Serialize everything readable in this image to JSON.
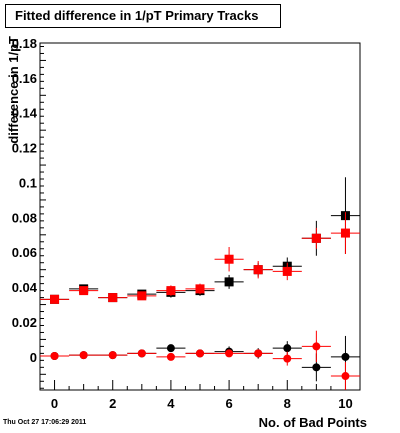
{
  "title": "Fitted difference in 1/pT Primary Tracks",
  "footer": "Thu Oct 27 17:06:29 2011",
  "chart_data": {
    "type": "scatter",
    "title": "Fitted difference in 1/pT Primary Tracks",
    "xlabel": "No. of Bad Points",
    "ylabel": "difference in 1/pT",
    "xlim": [
      -0.5,
      10.5
    ],
    "ylim": [
      -0.019,
      0.18
    ],
    "x_ticks": [
      0,
      2,
      4,
      6,
      8,
      10
    ],
    "y_ticks": [
      0,
      0.02,
      0.04,
      0.06,
      0.08,
      0.1,
      0.12,
      0.14,
      0.16,
      0.18
    ],
    "y_tick_labels": [
      "0",
      "0.02",
      "0.04",
      "0.06",
      "0.08",
      "0.1",
      "0.12",
      "0.14",
      "0.16",
      "0.18"
    ],
    "grid": false,
    "series": [
      {
        "marker": "square",
        "color": "#000000",
        "points": [
          {
            "x": 0,
            "y": 0.033,
            "yerr": 0.001
          },
          {
            "x": 1,
            "y": 0.039,
            "yerr": 0.002
          },
          {
            "x": 2,
            "y": 0.034,
            "yerr": 0.002
          },
          {
            "x": 3,
            "y": 0.036,
            "yerr": 0.002
          },
          {
            "x": 4,
            "y": 0.037,
            "yerr": 0.003
          },
          {
            "x": 5,
            "y": 0.038,
            "yerr": 0.003
          },
          {
            "x": 6,
            "y": 0.043,
            "yerr": 0.004
          },
          {
            "x": 7,
            "y": 0.05,
            "yerr": 0.004
          },
          {
            "x": 8,
            "y": 0.052,
            "yerr": 0.005
          },
          {
            "x": 9,
            "y": 0.068,
            "yerr": 0.01
          },
          {
            "x": 10,
            "y": 0.081,
            "yerr": 0.022
          }
        ]
      },
      {
        "marker": "square",
        "color": "#ff0000",
        "points": [
          {
            "x": 0,
            "y": 0.033,
            "yerr": 0.001
          },
          {
            "x": 1,
            "y": 0.038,
            "yerr": 0.002
          },
          {
            "x": 2,
            "y": 0.034,
            "yerr": 0.002
          },
          {
            "x": 3,
            "y": 0.035,
            "yerr": 0.002
          },
          {
            "x": 4,
            "y": 0.038,
            "yerr": 0.003
          },
          {
            "x": 5,
            "y": 0.039,
            "yerr": 0.003
          },
          {
            "x": 6,
            "y": 0.056,
            "yerr": 0.007
          },
          {
            "x": 7,
            "y": 0.05,
            "yerr": 0.005
          },
          {
            "x": 8,
            "y": 0.049,
            "yerr": 0.005
          },
          {
            "x": 9,
            "y": 0.068,
            "yerr": 0.006
          },
          {
            "x": 10,
            "y": 0.071,
            "yerr": 0.012
          }
        ]
      },
      {
        "marker": "circle",
        "color": "#000000",
        "points": [
          {
            "x": 0,
            "y": 0.0005,
            "yerr": 0.001
          },
          {
            "x": 1,
            "y": 0.001,
            "yerr": 0.001
          },
          {
            "x": 2,
            "y": 0.001,
            "yerr": 0.001
          },
          {
            "x": 3,
            "y": 0.002,
            "yerr": 0.001
          },
          {
            "x": 4,
            "y": 0.005,
            "yerr": 0.002
          },
          {
            "x": 5,
            "y": 0.002,
            "yerr": 0.002
          },
          {
            "x": 6,
            "y": 0.003,
            "yerr": 0.003
          },
          {
            "x": 7,
            "y": 0.002,
            "yerr": 0.003
          },
          {
            "x": 8,
            "y": 0.005,
            "yerr": 0.004
          },
          {
            "x": 9,
            "y": -0.006,
            "yerr": 0.008
          },
          {
            "x": 10,
            "y": 0.0,
            "yerr": 0.012
          }
        ]
      },
      {
        "marker": "circle",
        "color": "#ff0000",
        "points": [
          {
            "x": 0,
            "y": 0.0005,
            "yerr": 0.001
          },
          {
            "x": 1,
            "y": 0.001,
            "yerr": 0.001
          },
          {
            "x": 2,
            "y": 0.001,
            "yerr": 0.001
          },
          {
            "x": 3,
            "y": 0.002,
            "yerr": 0.001
          },
          {
            "x": 4,
            "y": 0.0,
            "yerr": 0.002
          },
          {
            "x": 5,
            "y": 0.002,
            "yerr": 0.002
          },
          {
            "x": 6,
            "y": 0.002,
            "yerr": 0.002
          },
          {
            "x": 7,
            "y": 0.002,
            "yerr": 0.002
          },
          {
            "x": 8,
            "y": -0.001,
            "yerr": 0.004
          },
          {
            "x": 9,
            "y": 0.006,
            "yerr": 0.009
          },
          {
            "x": 10,
            "y": -0.011,
            "yerr": 0.008
          }
        ]
      }
    ]
  }
}
